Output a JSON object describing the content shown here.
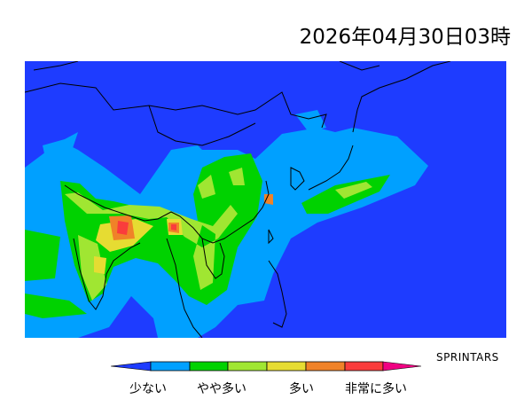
{
  "title": "2026年04月30日03時",
  "credit": "SPRINTARS",
  "legend": {
    "labels": [
      "少ない",
      "やや多い",
      "多い",
      "非常に多い"
    ],
    "colors": [
      "#1e3cff",
      "#00a0ff",
      "#00d200",
      "#a0e632",
      "#e6dc32",
      "#f08228",
      "#fa3c3c",
      "#f00082"
    ]
  },
  "map": {
    "background_color": "#1e3cff"
  }
}
